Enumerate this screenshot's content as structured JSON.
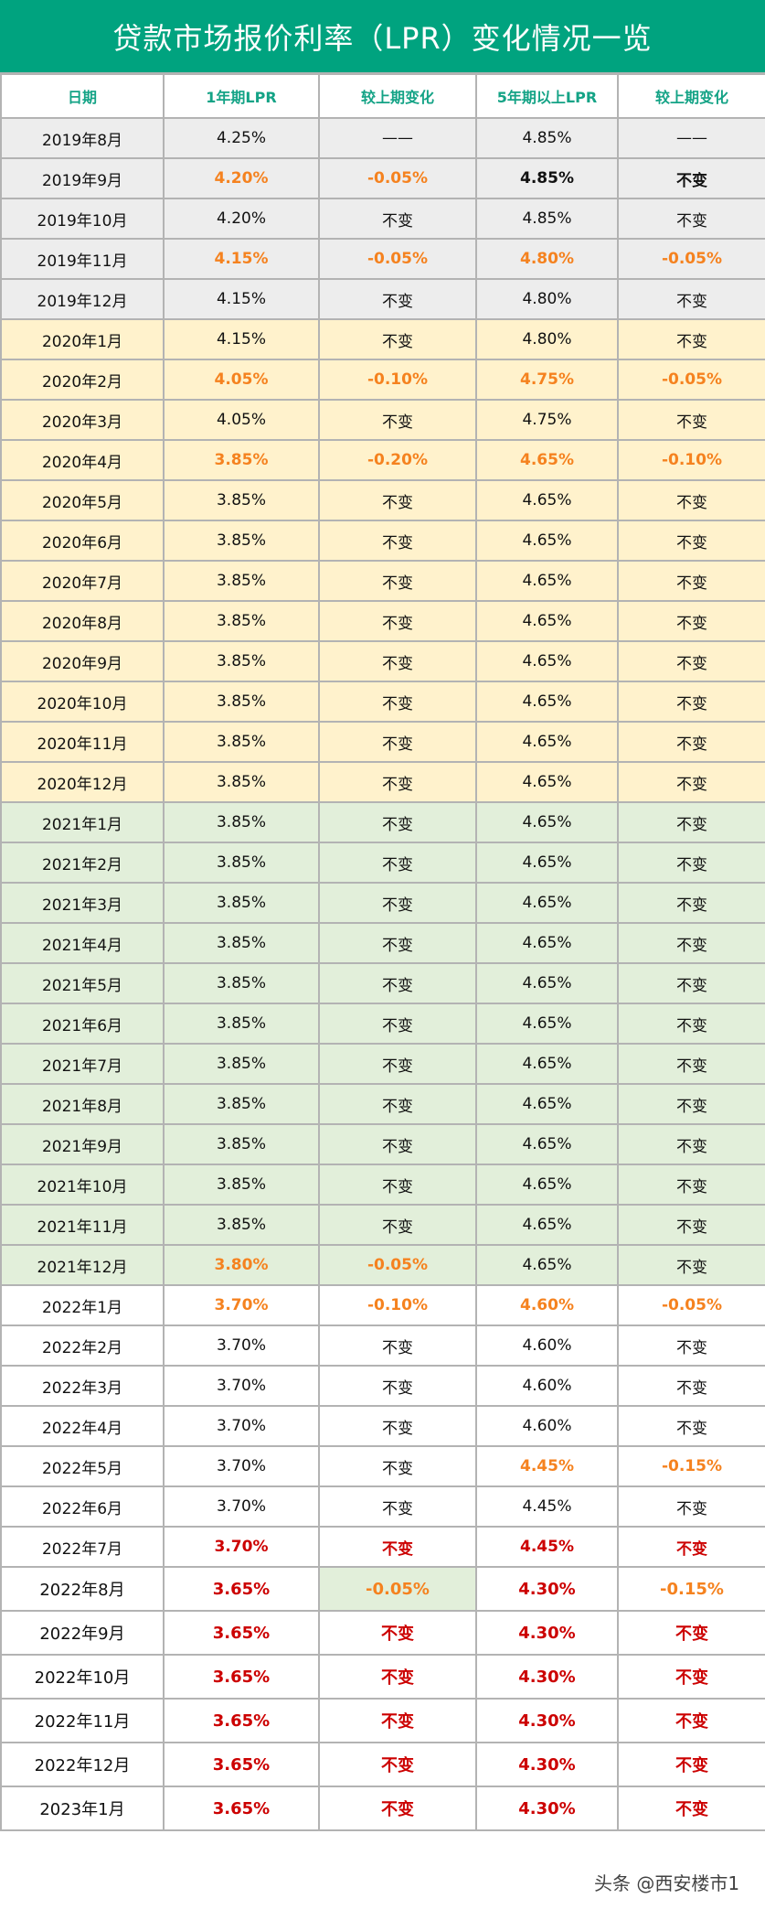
{
  "title": "贷款市场报价利率（LPR）变化情况一览",
  "headers": [
    "日期",
    "1年期LPR",
    "较上期变化",
    "5年期以上LPR",
    "较上期变化"
  ],
  "colors": {
    "title_bg": "#00a37f",
    "header_text": "#14a386",
    "orange": "#f5821f",
    "red": "#cc0000",
    "gray_row": "#ededed",
    "yellow_row": "#fff2cc",
    "green_row": "#e2efda",
    "grid": "#b3b3b3"
  },
  "rows": [
    {
      "band": "gray",
      "h": "r46",
      "cells": [
        "2019年8月",
        "4.25%",
        "——",
        "4.85%",
        "——"
      ],
      "styles": [
        "",
        "",
        "",
        "",
        ""
      ]
    },
    {
      "band": "gray",
      "h": "r46",
      "cells": [
        "2019年9月",
        "4.20%",
        "-0.05%",
        "4.85%",
        "不变"
      ],
      "styles": [
        "",
        "c-orange",
        "c-orange",
        "c-bold",
        "c-bold"
      ]
    },
    {
      "band": "gray",
      "h": "r46",
      "cells": [
        "2019年10月",
        "4.20%",
        "不变",
        "4.85%",
        "不变"
      ],
      "styles": [
        "",
        "",
        "",
        "",
        ""
      ]
    },
    {
      "band": "gray",
      "h": "r46",
      "cells": [
        "2019年11月",
        "4.15%",
        "-0.05%",
        "4.80%",
        "-0.05%"
      ],
      "styles": [
        "",
        "c-orange",
        "c-orange",
        "c-orange",
        "c-orange"
      ]
    },
    {
      "band": "gray",
      "h": "r46",
      "cells": [
        "2019年12月",
        "4.15%",
        "不变",
        "4.80%",
        "不变"
      ],
      "styles": [
        "",
        "",
        "",
        "",
        ""
      ]
    },
    {
      "band": "yellow",
      "h": "r46",
      "cells": [
        "2020年1月",
        "4.15%",
        "不变",
        "4.80%",
        "不变"
      ],
      "styles": [
        "",
        "",
        "",
        "",
        ""
      ]
    },
    {
      "band": "yellow",
      "h": "r46",
      "cells": [
        "2020年2月",
        "4.05%",
        "-0.10%",
        "4.75%",
        "-0.05%"
      ],
      "styles": [
        "",
        "c-orange",
        "c-orange",
        "c-orange",
        "c-orange"
      ]
    },
    {
      "band": "yellow",
      "h": "r46",
      "cells": [
        "2020年3月",
        "4.05%",
        "不变",
        "4.75%",
        "不变"
      ],
      "styles": [
        "",
        "",
        "",
        "",
        ""
      ]
    },
    {
      "band": "yellow",
      "h": "r46",
      "cells": [
        "2020年4月",
        "3.85%",
        "-0.20%",
        "4.65%",
        "-0.10%"
      ],
      "styles": [
        "",
        "c-orange",
        "c-orange",
        "c-orange",
        "c-orange"
      ]
    },
    {
      "band": "yellow",
      "h": "r46",
      "cells": [
        "2020年5月",
        "3.85%",
        "不变",
        "4.65%",
        "不变"
      ],
      "styles": [
        "",
        "",
        "",
        "",
        ""
      ]
    },
    {
      "band": "yellow",
      "h": "r46",
      "cells": [
        "2020年6月",
        "3.85%",
        "不变",
        "4.65%",
        "不变"
      ],
      "styles": [
        "",
        "",
        "",
        "",
        ""
      ]
    },
    {
      "band": "yellow",
      "h": "r46",
      "cells": [
        "2020年7月",
        "3.85%",
        "不变",
        "4.65%",
        "不变"
      ],
      "styles": [
        "",
        "",
        "",
        "",
        ""
      ]
    },
    {
      "band": "yellow",
      "h": "r46",
      "cells": [
        "2020年8月",
        "3.85%",
        "不变",
        "4.65%",
        "不变"
      ],
      "styles": [
        "",
        "",
        "",
        "",
        ""
      ]
    },
    {
      "band": "yellow",
      "h": "r46",
      "cells": [
        "2020年9月",
        "3.85%",
        "不变",
        "4.65%",
        "不变"
      ],
      "styles": [
        "",
        "",
        "",
        "",
        ""
      ]
    },
    {
      "band": "yellow",
      "h": "r46",
      "cells": [
        "2020年10月",
        "3.85%",
        "不变",
        "4.65%",
        "不变"
      ],
      "styles": [
        "",
        "",
        "",
        "",
        ""
      ]
    },
    {
      "band": "yellow",
      "h": "r46",
      "cells": [
        "2020年11月",
        "3.85%",
        "不变",
        "4.65%",
        "不变"
      ],
      "styles": [
        "",
        "",
        "",
        "",
        ""
      ]
    },
    {
      "band": "yellow",
      "h": "r46",
      "cells": [
        "2020年12月",
        "3.85%",
        "不变",
        "4.65%",
        "不变"
      ],
      "styles": [
        "",
        "",
        "",
        "",
        ""
      ]
    },
    {
      "band": "green",
      "h": "r46",
      "cells": [
        "2021年1月",
        "3.85%",
        "不变",
        "4.65%",
        "不变"
      ],
      "styles": [
        "",
        "",
        "",
        "",
        ""
      ]
    },
    {
      "band": "green",
      "h": "r46",
      "cells": [
        "2021年2月",
        "3.85%",
        "不变",
        "4.65%",
        "不变"
      ],
      "styles": [
        "",
        "",
        "",
        "",
        ""
      ]
    },
    {
      "band": "green",
      "h": "r46",
      "cells": [
        "2021年3月",
        "3.85%",
        "不变",
        "4.65%",
        "不变"
      ],
      "styles": [
        "",
        "",
        "",
        "",
        ""
      ]
    },
    {
      "band": "green",
      "h": "r46",
      "cells": [
        "2021年4月",
        "3.85%",
        "不变",
        "4.65%",
        "不变"
      ],
      "styles": [
        "",
        "",
        "",
        "",
        ""
      ]
    },
    {
      "band": "green",
      "h": "r46",
      "cells": [
        "2021年5月",
        "3.85%",
        "不变",
        "4.65%",
        "不变"
      ],
      "styles": [
        "",
        "",
        "",
        "",
        ""
      ]
    },
    {
      "band": "green",
      "h": "r46",
      "cells": [
        "2021年6月",
        "3.85%",
        "不变",
        "4.65%",
        "不变"
      ],
      "styles": [
        "",
        "",
        "",
        "",
        ""
      ]
    },
    {
      "band": "green",
      "h": "r46",
      "cells": [
        "2021年7月",
        "3.85%",
        "不变",
        "4.65%",
        "不变"
      ],
      "styles": [
        "",
        "",
        "",
        "",
        ""
      ]
    },
    {
      "band": "green",
      "h": "r46",
      "cells": [
        "2021年8月",
        "3.85%",
        "不变",
        "4.65%",
        "不变"
      ],
      "styles": [
        "",
        "",
        "",
        "",
        ""
      ]
    },
    {
      "band": "green",
      "h": "r46",
      "cells": [
        "2021年9月",
        "3.85%",
        "不变",
        "4.65%",
        "不变"
      ],
      "styles": [
        "",
        "",
        "",
        "",
        ""
      ]
    },
    {
      "band": "green",
      "h": "r46",
      "cells": [
        "2021年10月",
        "3.85%",
        "不变",
        "4.65%",
        "不变"
      ],
      "styles": [
        "",
        "",
        "",
        "",
        ""
      ]
    },
    {
      "band": "green",
      "h": "r46",
      "cells": [
        "2021年11月",
        "3.85%",
        "不变",
        "4.65%",
        "不变"
      ],
      "styles": [
        "",
        "",
        "",
        "",
        ""
      ]
    },
    {
      "band": "green",
      "h": "r46",
      "cells": [
        "2021年12月",
        "3.80%",
        "-0.05%",
        "4.65%",
        "不变"
      ],
      "styles": [
        "",
        "c-orange",
        "c-orange",
        "",
        ""
      ]
    },
    {
      "band": "white",
      "h": "r46",
      "cells": [
        "2022年1月",
        "3.70%",
        "-0.10%",
        "4.60%",
        "-0.05%"
      ],
      "styles": [
        "",
        "c-orange",
        "c-orange",
        "c-orange",
        "c-orange"
      ]
    },
    {
      "band": "white",
      "h": "r46",
      "cells": [
        "2022年2月",
        "3.70%",
        "不变",
        "4.60%",
        "不变"
      ],
      "styles": [
        "",
        "",
        "",
        "",
        ""
      ]
    },
    {
      "band": "white",
      "h": "r46",
      "cells": [
        "2022年3月",
        "3.70%",
        "不变",
        "4.60%",
        "不变"
      ],
      "styles": [
        "",
        "",
        "",
        "",
        ""
      ]
    },
    {
      "band": "white",
      "h": "r46",
      "cells": [
        "2022年4月",
        "3.70%",
        "不变",
        "4.60%",
        "不变"
      ],
      "styles": [
        "",
        "",
        "",
        "",
        ""
      ]
    },
    {
      "band": "white",
      "h": "r46",
      "cells": [
        "2022年5月",
        "3.70%",
        "不变",
        "4.45%",
        "-0.15%"
      ],
      "styles": [
        "",
        "",
        "",
        "c-orange",
        "c-orange"
      ]
    },
    {
      "band": "white",
      "h": "r46",
      "cells": [
        "2022年6月",
        "3.70%",
        "不变",
        "4.45%",
        "不变"
      ],
      "styles": [
        "",
        "",
        "",
        "",
        ""
      ]
    },
    {
      "band": "white",
      "h": "r46",
      "cells": [
        "2022年7月",
        "3.70%",
        "不变",
        "4.45%",
        "不变"
      ],
      "styles": [
        "",
        "c-red",
        "c-red",
        "c-red",
        "c-red"
      ]
    },
    {
      "band": "white",
      "h": "r50",
      "cells": [
        "2022年8月",
        "3.65%",
        "-0.05%",
        "4.30%",
        "-0.15%"
      ],
      "styles": [
        "",
        "c-red",
        "c-orange bg-green",
        "c-red",
        "c-orange"
      ]
    },
    {
      "band": "white",
      "h": "r50",
      "cells": [
        "2022年9月",
        "3.65%",
        "不变",
        "4.30%",
        "不变"
      ],
      "styles": [
        "",
        "c-red",
        "c-red",
        "c-red",
        "c-red"
      ]
    },
    {
      "band": "white",
      "h": "r50",
      "cells": [
        "2022年10月",
        "3.65%",
        "不变",
        "4.30%",
        "不变"
      ],
      "styles": [
        "",
        "c-red",
        "c-red",
        "c-red",
        "c-red"
      ]
    },
    {
      "band": "white",
      "h": "r50",
      "cells": [
        "2022年11月",
        "3.65%",
        "不变",
        "4.30%",
        "不变"
      ],
      "styles": [
        "",
        "c-red",
        "c-red",
        "c-red",
        "c-red"
      ]
    },
    {
      "band": "white",
      "h": "r50",
      "cells": [
        "2022年12月",
        "3.65%",
        "不变",
        "4.30%",
        "不变"
      ],
      "styles": [
        "",
        "c-red",
        "c-red",
        "c-red",
        "c-red"
      ]
    },
    {
      "band": "white",
      "h": "r50",
      "cells": [
        "2023年1月",
        "3.65%",
        "不变",
        "4.30%",
        "不变"
      ],
      "styles": [
        "",
        "c-red",
        "c-red",
        "c-red",
        "c-red"
      ]
    }
  ],
  "watermark": "头条 @西安楼市1"
}
